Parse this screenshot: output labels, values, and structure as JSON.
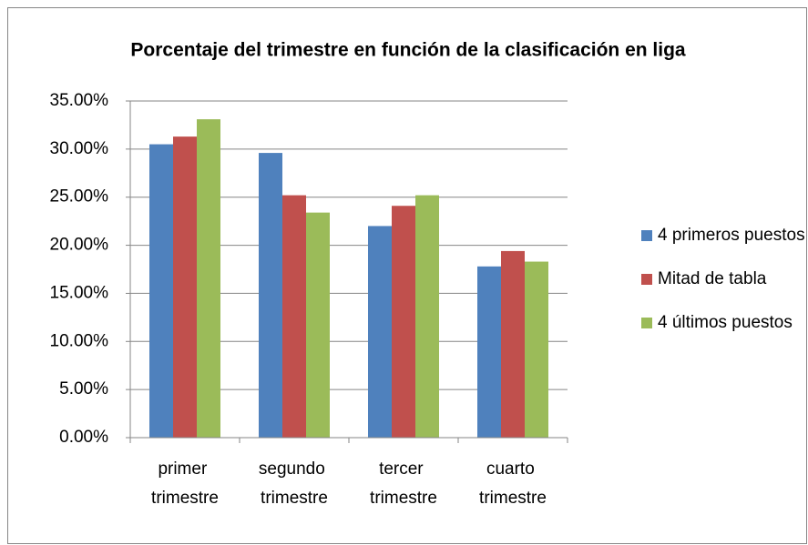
{
  "chart_data": {
    "type": "bar",
    "title": "Porcentaje del trimestre en función de la clasificación en liga",
    "categories": [
      "primer trimestre",
      "segundo trimestre",
      "tercer trimestre",
      "cuarto trimestre"
    ],
    "series": [
      {
        "name": "4 primeros puestos",
        "color": "#4f81bd",
        "values": [
          30.5,
          29.6,
          22.0,
          17.8
        ]
      },
      {
        "name": "Mitad de tabla",
        "color": "#c0504d",
        "values": [
          31.3,
          25.2,
          24.1,
          19.4
        ]
      },
      {
        "name": "4 últimos puestos",
        "color": "#9bbb59",
        "values": [
          33.1,
          23.4,
          25.2,
          18.3
        ]
      }
    ],
    "ylim": [
      0,
      35
    ],
    "yticks": [
      {
        "value": 0,
        "label": "0.00%"
      },
      {
        "value": 5,
        "label": "5.00%"
      },
      {
        "value": 10,
        "label": "10.00%"
      },
      {
        "value": 15,
        "label": "15.00%"
      },
      {
        "value": 20,
        "label": "20.00%"
      },
      {
        "value": 25,
        "label": "25.00%"
      },
      {
        "value": 30,
        "label": "30.00%"
      },
      {
        "value": 35,
        "label": "35.00%"
      }
    ],
    "grid": true,
    "legend": "right"
  }
}
